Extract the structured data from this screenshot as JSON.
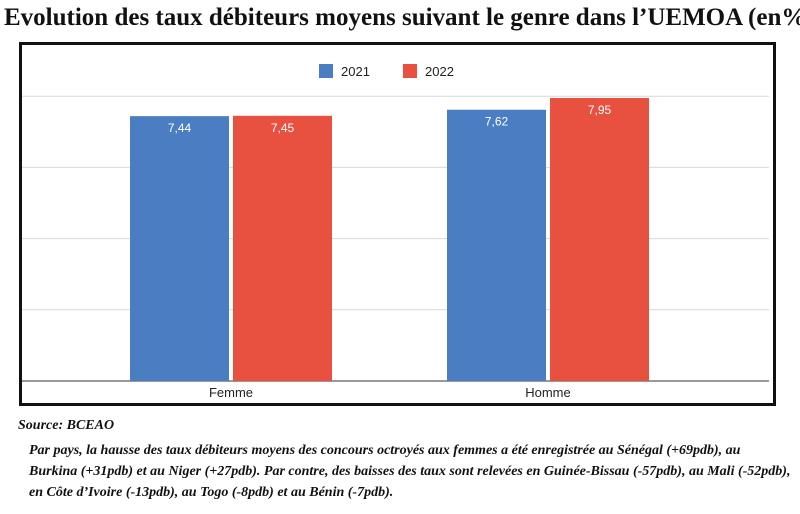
{
  "title": "Evolution des taux débiteurs moyens suivant le genre dans l’UEMOA (en%)",
  "source": "Source: BCEAO",
  "note": "Par pays, la hausse des taux débiteurs moyens des concours octroyés aux femmes a été enregistrée au Sénégal (+69pdb), au Burkina (+31pdb) et au Niger (+27pdb). Par contre, des baisses des taux sont relevées en Guinée-Bissau (-57pdb), au Mali (-52pdb), en Côte d’Ivoire (-13pdb), au Togo (-8pdb) et au Bénin (-7pdb).",
  "chart_data": {
    "type": "bar",
    "title": "Evolution des taux débiteurs moyens suivant le genre dans l’UEMOA (en%)",
    "categories": [
      "Femme",
      "Homme"
    ],
    "series": [
      {
        "name": "2021",
        "values": [
          7.44,
          7.62
        ],
        "labels": [
          "7,44",
          "7,62"
        ],
        "color": "#4a7dc2"
      },
      {
        "name": "2022",
        "values": [
          7.45,
          7.95
        ],
        "labels": [
          "7,45",
          "7,95"
        ],
        "color": "#e8503f"
      }
    ],
    "xlabel": "",
    "ylabel": "",
    "ylim": [
      0,
      8
    ],
    "grid": true,
    "legend": "top-center"
  }
}
